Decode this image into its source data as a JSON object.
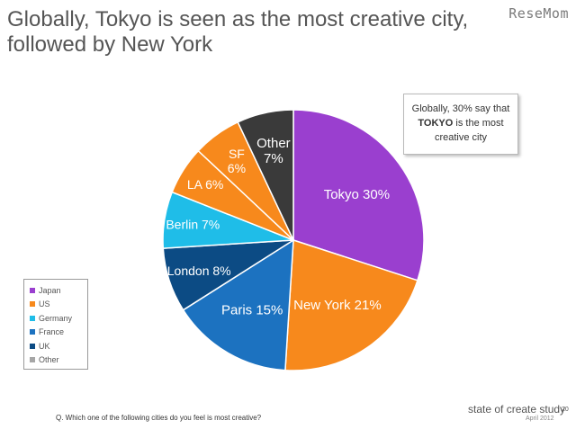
{
  "title": {
    "line1": "Globally, Tokyo is seen as the most creative city,",
    "line2": "followed by New York"
  },
  "watermark": "ReseMom",
  "callout": {
    "before": "Globally, 30% say that",
    "strong": "TOKYO",
    "after": "is the most",
    "line3": "creative city"
  },
  "legend": [
    {
      "label": "Japan",
      "color": "#9a3fcf"
    },
    {
      "label": "US",
      "color": "#f7891c"
    },
    {
      "label": "Germany",
      "color": "#1fbde8"
    },
    {
      "label": "France",
      "color": "#1c72c0"
    },
    {
      "label": "UK",
      "color": "#0c4b84"
    },
    {
      "label": "Other",
      "color": "#a6a6a6"
    }
  ],
  "question": "Q. Which one of the following cities do you feel is most creative?",
  "footer": {
    "study": "state of create study",
    "page": "20",
    "date": "April 2012"
  },
  "chart_data": {
    "type": "pie",
    "slices": [
      {
        "label": "Tokyo",
        "value": 30,
        "text": "Tokyo 30%",
        "color": "#9a3fcf"
      },
      {
        "label": "New York",
        "value": 21,
        "text": "New York 21%",
        "color": "#f7891c"
      },
      {
        "label": "Paris",
        "value": 15,
        "text": "Paris 15%",
        "color": "#1c72c0"
      },
      {
        "label": "London",
        "value": 8,
        "text": "London 8%",
        "color": "#0c4b84"
      },
      {
        "label": "Berlin",
        "value": 7,
        "text": "Berlin 7%",
        "color": "#1fbde8"
      },
      {
        "label": "LA",
        "value": 6,
        "text": "LA 6%",
        "color": "#f7891c"
      },
      {
        "label": "SF",
        "value": 6,
        "text": "SF 6%",
        "color": "#f7891c"
      },
      {
        "label": "Other",
        "value": 7,
        "text": "Other 7%",
        "color": "#3a3a3a"
      }
    ],
    "start": "12 o'clock",
    "direction": "clockwise",
    "legend_position": "bottom-left"
  }
}
